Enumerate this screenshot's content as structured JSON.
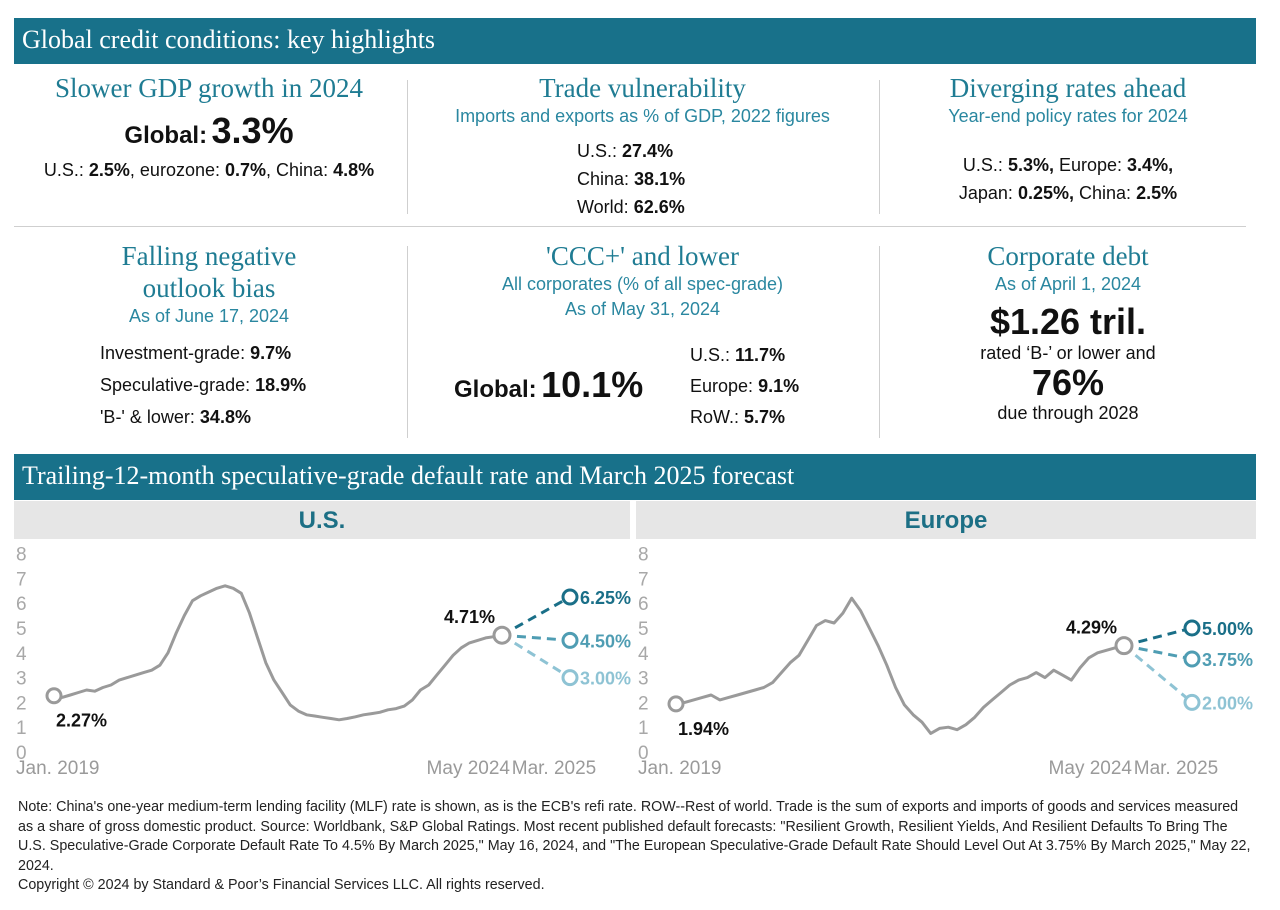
{
  "header": {
    "title": "Global credit conditions: key highlights"
  },
  "gdp": {
    "title": "Slower GDP growth in 2024",
    "global_label": "Global:",
    "global_value": "3.3%",
    "us_label": "U.S.:",
    "us_value": "2.5%",
    "ez_label": ", eurozone:",
    "ez_value": "0.7%",
    "cn_label": ", China:",
    "cn_value": "4.8%"
  },
  "trade": {
    "title": "Trade vulnerability",
    "subtitle": "Imports and exports as % of GDP, 2022 figures",
    "items": [
      {
        "label": "U.S.:",
        "value": "27.4%"
      },
      {
        "label": "China:",
        "value": "38.1%"
      },
      {
        "label": "World:",
        "value": "62.6%"
      }
    ]
  },
  "rates": {
    "title": "Diverging rates ahead",
    "subtitle": "Year-end policy rates for 2024",
    "us_label": "U.S.:",
    "us_value": "5.3%,",
    "eu_label": "Europe:",
    "eu_value": "3.4%,",
    "jp_label": "Japan:",
    "jp_value": "0.25%,",
    "cn_label": "China:",
    "cn_value": "2.5%"
  },
  "outlook": {
    "title_line1": "Falling negative",
    "title_line2": "outlook bias",
    "subtitle": "As of June 17, 2024",
    "items": [
      {
        "label": "Investment-grade:",
        "value": "9.7%"
      },
      {
        "label": "Speculative-grade:",
        "value": "18.9%"
      },
      {
        "label": "'B-' & lower:",
        "value": "34.8%"
      }
    ]
  },
  "ccc": {
    "title": "'CCC+' and lower",
    "subtitle1": "All corporates (% of all spec-grade)",
    "subtitle2": "As of May 31, 2024",
    "global_label": "Global:",
    "global_value": "10.1%",
    "items": [
      {
        "label": "U.S.:",
        "value": "11.7%"
      },
      {
        "label": "Europe:",
        "value": "9.1%"
      },
      {
        "label": "RoW.:",
        "value": "5.7%"
      }
    ]
  },
  "debt": {
    "title": "Corporate debt",
    "subtitle": "As of April 1, 2024",
    "amount": "$1.26 tril.",
    "text1": "rated ‘B-’ or lower and",
    "pct": "76%",
    "text2": "due through 2028"
  },
  "section2": {
    "title": "Trailing-12-month speculative-grade default rate and March 2025 forecast"
  },
  "colors": {
    "brand": "#18718a",
    "line": "#9a9a9a",
    "pessimistic": "#1a6f88",
    "base": "#4f9db3",
    "optimistic": "#8ec3d4"
  },
  "chart_data": [
    {
      "type": "line",
      "title": "U.S.",
      "ylim": [
        0,
        8
      ],
      "yticks": [
        "0",
        "1",
        "2",
        "3",
        "4",
        "5",
        "6",
        "7",
        "8"
      ],
      "xlabels": [
        "Jan. 2019",
        "May 2024",
        "Mar. 2025"
      ],
      "grid": false,
      "series": [
        {
          "values": [
            2.27,
            2.2,
            2.3,
            2.4,
            2.5,
            2.45,
            2.6,
            2.7,
            2.9,
            3.0,
            3.1,
            3.2,
            3.3,
            3.5,
            4.0,
            4.8,
            5.5,
            6.1,
            6.3,
            6.45,
            6.6,
            6.7,
            6.6,
            6.4,
            5.6,
            4.6,
            3.6,
            2.9,
            2.4,
            1.9,
            1.65,
            1.5,
            1.45,
            1.4,
            1.35,
            1.3,
            1.35,
            1.42,
            1.5,
            1.55,
            1.6,
            1.7,
            1.75,
            1.85,
            2.1,
            2.5,
            2.7,
            3.1,
            3.5,
            3.9,
            4.2,
            4.4,
            4.5,
            4.6,
            4.65,
            4.71
          ]
        }
      ],
      "labels": {
        "start": "2.27%",
        "last": "4.71%"
      },
      "forecasts": [
        {
          "value": 6.25,
          "label": "6.25%"
        },
        {
          "value": 4.5,
          "label": "4.50%"
        },
        {
          "value": 3.0,
          "label": "3.00%"
        }
      ]
    },
    {
      "type": "line",
      "title": "Europe",
      "ylim": [
        0,
        8
      ],
      "yticks": [
        "0",
        "1",
        "2",
        "3",
        "4",
        "5",
        "6",
        "7",
        "8"
      ],
      "xlabels": [
        "Jan. 2019",
        "May 2024",
        "Mar. 2025"
      ],
      "grid": false,
      "series": [
        {
          "values": [
            1.94,
            2.0,
            2.1,
            2.2,
            2.3,
            2.1,
            2.2,
            2.3,
            2.4,
            2.5,
            2.6,
            2.8,
            3.2,
            3.6,
            3.9,
            4.5,
            5.1,
            5.3,
            5.2,
            5.6,
            6.2,
            5.7,
            5.0,
            4.3,
            3.5,
            2.6,
            1.9,
            1.5,
            1.2,
            0.75,
            0.95,
            1.0,
            0.9,
            1.1,
            1.4,
            1.8,
            2.1,
            2.4,
            2.7,
            2.9,
            3.0,
            3.2,
            3.0,
            3.3,
            3.1,
            2.9,
            3.4,
            3.8,
            4.0,
            4.1,
            4.2,
            4.29
          ]
        }
      ],
      "labels": {
        "start": "1.94%",
        "last": "4.29%"
      },
      "forecasts": [
        {
          "value": 5.0,
          "label": "5.00%"
        },
        {
          "value": 3.75,
          "label": "3.75%"
        },
        {
          "value": 2.0,
          "label": "2.00%"
        }
      ]
    }
  ],
  "footer": {
    "note": "Note: China's one-year medium-term lending facility (MLF) rate is shown, as is the ECB's refi rate. ROW--Rest of world. Trade is the sum of exports and imports of goods and services measured as a share of gross domestic product. Source: Worldbank, S&P Global Ratings. Most recent published default forecasts: \"Resilient Growth, Resilient Yields, And Resilient Defaults To Bring The U.S. Speculative-Grade Corporate Default Rate To 4.5% By March 2025,\" May 16, 2024, and \"The European Speculative-Grade Default Rate Should Level Out At 3.75% By March 2025,\" May 22, 2024.",
    "copyright": "Copyright © 2024 by Standard & Poor’s Financial Services LLC. All rights reserved."
  }
}
